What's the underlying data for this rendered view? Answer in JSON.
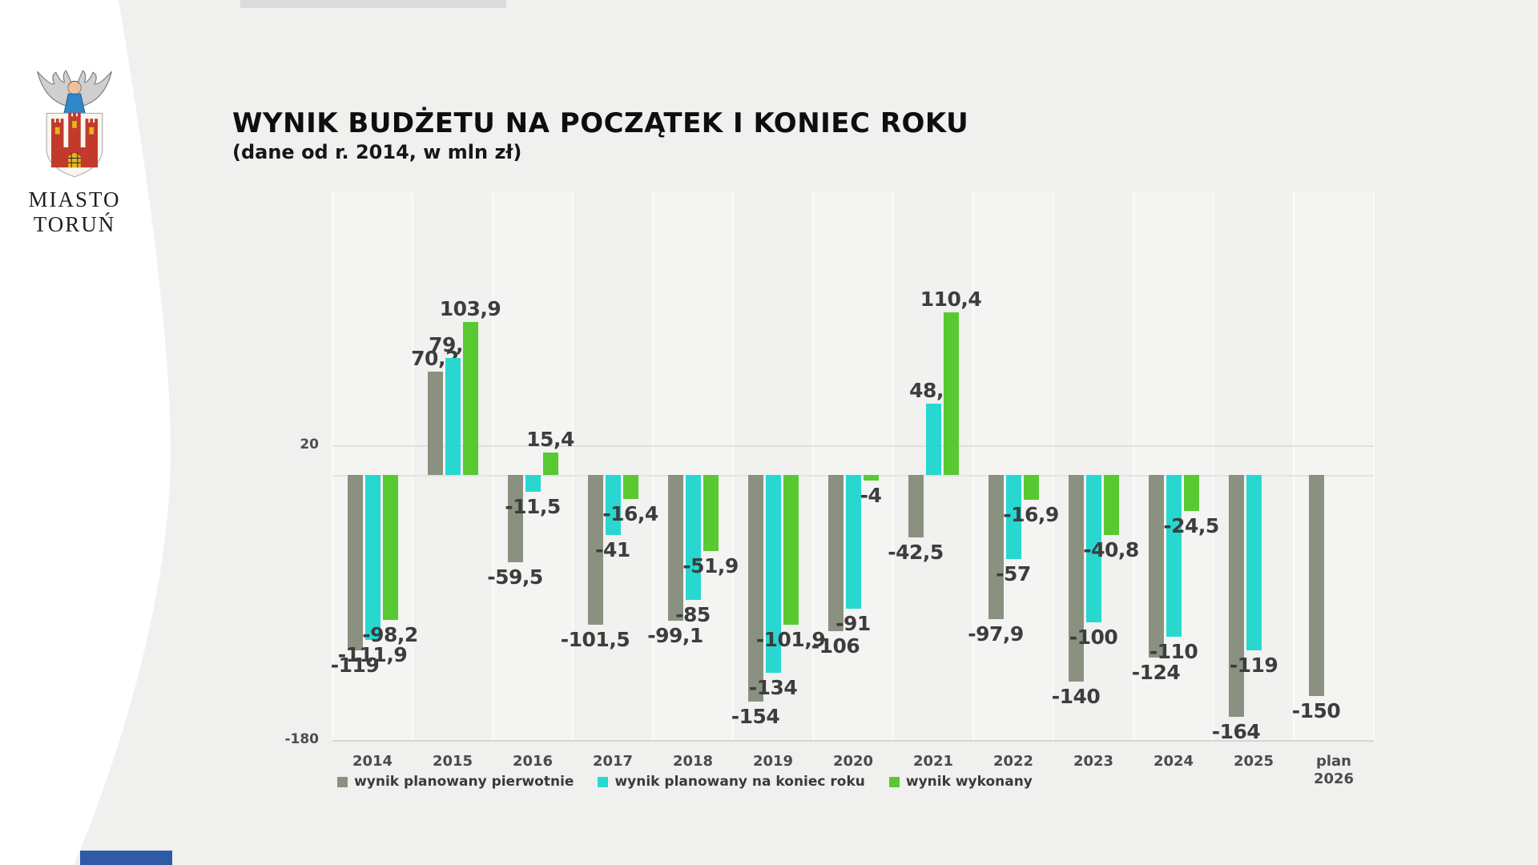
{
  "logo": {
    "line1": "MIASTO",
    "line2": "TORUŃ"
  },
  "header": {
    "title": "WYNIK BUDŻETU NA POCZĄTEK I KONIEC ROKU",
    "subtitle": "(dane od r. 2014, w mln zł)"
  },
  "colors": {
    "series_planned_initial": "#8a9180",
    "series_planned_yearend": "#28d8d0",
    "series_executed": "#58c931",
    "value_label": "#3d3d3d",
    "footer_accent_blue": "#2e5aa8"
  },
  "chart_data": {
    "type": "bar",
    "unit": "mln zł",
    "categories": [
      "2014",
      "2015",
      "2016",
      "2017",
      "2018",
      "2019",
      "2020",
      "2021",
      "2022",
      "2023",
      "2024",
      "2025",
      "plan 2026"
    ],
    "series": [
      {
        "name": "wynik planowany pierwotnie",
        "color": "#8a9180",
        "values": [
          -119,
          70.2,
          -59.5,
          -101.5,
          -99.1,
          -154,
          -106,
          -42.5,
          -97.9,
          -140,
          -124,
          -164,
          -150
        ],
        "labels": [
          "-119",
          "70,2",
          "-59,5",
          "-101,5",
          "-99,1",
          "-154",
          "-106",
          "-42,5",
          "-97,9",
          "-140",
          "-124",
          "-164",
          "-150"
        ]
      },
      {
        "name": "wynik planowany na koniec roku",
        "color": "#28d8d0",
        "values": [
          -111.9,
          79.6,
          -11.5,
          -41,
          -85,
          -134,
          -91,
          48.1,
          -57,
          -100,
          -110,
          -119,
          null
        ],
        "labels": [
          "-111,9",
          "79,6",
          "-11,5",
          "-41",
          "-85",
          "-134",
          "-91",
          "48,1",
          "-57",
          "-100",
          "-110",
          "-119",
          null
        ]
      },
      {
        "name": "wynik wykonany",
        "color": "#58c931",
        "values": [
          -98.2,
          103.9,
          15.4,
          -16.4,
          -51.9,
          -101.9,
          -4,
          110.4,
          -16.9,
          -40.8,
          -24.5,
          null,
          null
        ],
        "labels": [
          "-98,2",
          "103,9",
          "15,4",
          "-16,4",
          "-51,9",
          "-101,9",
          "-4",
          "110,4",
          "-16,9",
          "-40,8",
          "-24,5",
          null,
          null
        ]
      }
    ],
    "y_axis": {
      "ticks": [
        {
          "value": 20,
          "label": "20"
        },
        {
          "value": -180,
          "label": "-180"
        }
      ],
      "baseline": 0
    },
    "ylim": [
      -180,
      192
    ],
    "grid": "vertical column stripes; horizontal lines at 20, 0, -180",
    "legend_position": "bottom"
  },
  "legend": {
    "items": [
      {
        "label": "wynik planowany pierwotnie",
        "color": "#8a9180"
      },
      {
        "label": "wynik planowany na koniec roku",
        "color": "#28d8d0"
      },
      {
        "label": "wynik wykonany",
        "color": "#58c931"
      }
    ]
  }
}
